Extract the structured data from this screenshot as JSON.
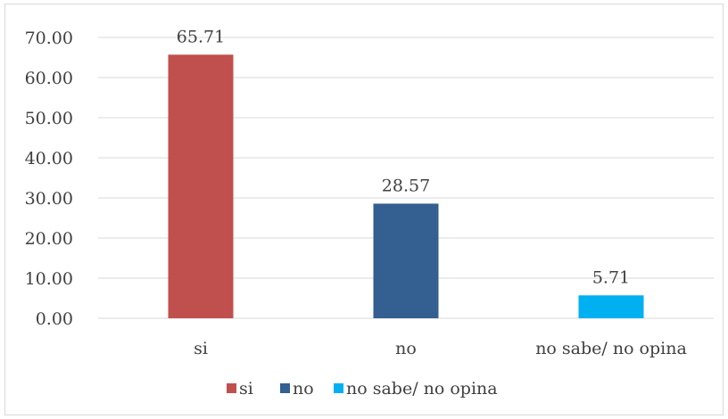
{
  "chart_data": {
    "type": "bar",
    "categories": [
      "si",
      "no",
      "no sabe/ no opina"
    ],
    "values": [
      65.71,
      28.57,
      5.71
    ],
    "data_labels": [
      "65.71",
      "28.57",
      "5.71"
    ],
    "colors": [
      "#c0504d",
      "#335f91",
      "#00b0f0"
    ],
    "ylim": [
      0,
      70
    ],
    "yticks": [
      "0.00",
      "10.00",
      "20.00",
      "30.00",
      "40.00",
      "50.00",
      "60.00",
      "70.00"
    ],
    "ytick_values": [
      0,
      10,
      20,
      30,
      40,
      50,
      60,
      70
    ],
    "grid": true,
    "legend": {
      "position": "bottom",
      "entries": [
        "si",
        "no",
        "no sabe/ no opina"
      ]
    }
  }
}
